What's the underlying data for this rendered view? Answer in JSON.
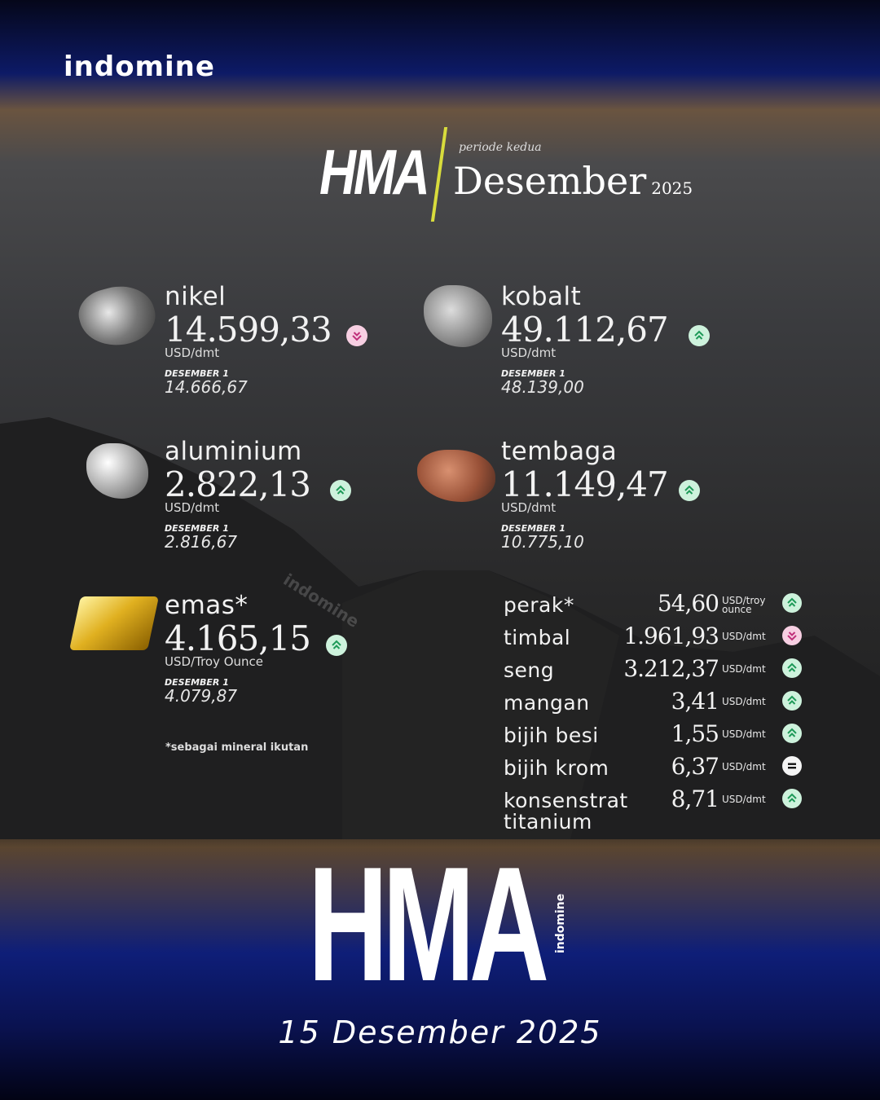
{
  "brand": "indomine",
  "header": {
    "title": "HMA",
    "subtitle": "periode kedua",
    "month": "Desember",
    "year": "2025"
  },
  "colors": {
    "up": "#1e9a58",
    "down": "#c0307a",
    "accent": "#d8dc3c"
  },
  "featured": [
    {
      "name": "nikel",
      "value": "14.599,33",
      "unit": "USD/dmt",
      "prev_label": "DESEMBER 1",
      "prev_value": "14.666,67",
      "trend": "down"
    },
    {
      "name": "kobalt",
      "value": "49.112,67",
      "unit": "USD/dmt",
      "prev_label": "DESEMBER 1",
      "prev_value": "48.139,00",
      "trend": "up"
    },
    {
      "name": "aluminium",
      "value": "2.822,13",
      "unit": "USD/dmt",
      "prev_label": "DESEMBER 1",
      "prev_value": "2.816,67",
      "trend": "up"
    },
    {
      "name": "tembaga",
      "value": "11.149,47",
      "unit": "USD/dmt",
      "prev_label": "DESEMBER 1",
      "prev_value": "10.775,10",
      "trend": "up"
    },
    {
      "name": "emas*",
      "value": "4.165,15",
      "unit": "USD/Troy Ounce",
      "prev_label": "DESEMBER 1",
      "prev_value": "4.079,87",
      "trend": "up"
    }
  ],
  "note": "*sebagai mineral ikutan",
  "list": [
    {
      "name": "perak*",
      "value": "54,60",
      "unit": "USD/troy ounce",
      "trend": "up"
    },
    {
      "name": "timbal",
      "value": "1.961,93",
      "unit": "USD/dmt",
      "trend": "down"
    },
    {
      "name": "seng",
      "value": "3.212,37",
      "unit": "USD/dmt",
      "trend": "up"
    },
    {
      "name": "mangan",
      "value": "3,41",
      "unit": "USD/dmt",
      "trend": "up"
    },
    {
      "name": "bijih besi",
      "value": "1,55",
      "unit": "USD/dmt",
      "trend": "up"
    },
    {
      "name": "bijih krom",
      "value": "6,37",
      "unit": "USD/dmt",
      "trend": "equal"
    },
    {
      "name": "konsenstrat titanium",
      "value": "8,71",
      "unit": "USD/dmt",
      "trend": "up"
    }
  ],
  "footer": {
    "logo": "HMA",
    "logo_sub": "indomine",
    "date": "15 Desember 2025"
  }
}
